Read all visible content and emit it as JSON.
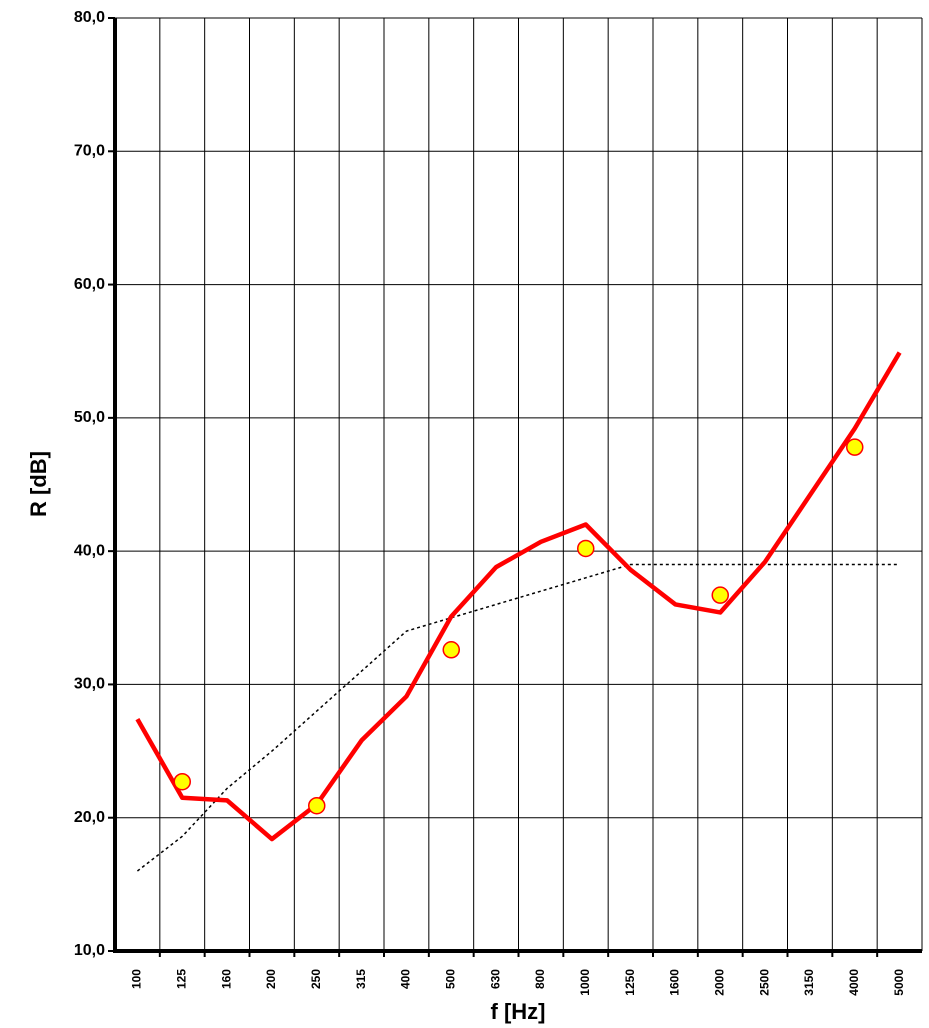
{
  "chart_data": {
    "type": "line",
    "x_label": "f [Hz]",
    "y_label": "R [dB]",
    "categories": [
      "100",
      "125",
      "160",
      "200",
      "250",
      "315",
      "400",
      "500",
      "630",
      "800",
      "1000",
      "1250",
      "1600",
      "2000",
      "2500",
      "3150",
      "4000",
      "5000"
    ],
    "series": [
      {
        "color": "#ff0000",
        "style": "solid",
        "values": [
          27.4,
          21.5,
          21.3,
          18.4,
          21.0,
          25.8,
          29.1,
          35.1,
          38.8,
          40.7,
          42.0,
          38.6,
          36.0,
          35.4,
          39.2,
          44.2,
          49.2,
          54.9
        ]
      },
      {
        "color": "#000000",
        "style": "dotted",
        "values": [
          16.0,
          18.6,
          22.2,
          25.0,
          28.0,
          31.0,
          34.0,
          35.0,
          36.0,
          37.0,
          38.0,
          39.0,
          39.0,
          39.0,
          39.0,
          39.0,
          39.0,
          39.0
        ]
      },
      {
        "color": "#ffff00",
        "style": "markers",
        "values": [
          null,
          22.7,
          null,
          null,
          20.9,
          null,
          null,
          32.6,
          null,
          null,
          40.2,
          null,
          null,
          36.7,
          null,
          null,
          47.8,
          null
        ]
      }
    ],
    "ylim": [
      10,
      80
    ],
    "yticks": [
      {
        "value": 10,
        "label": "10,0"
      },
      {
        "value": 20,
        "label": "20,0"
      },
      {
        "value": 30,
        "label": "30,0"
      },
      {
        "value": 40,
        "label": "40,0"
      },
      {
        "value": 50,
        "label": "50,0"
      },
      {
        "value": 60,
        "label": "60,0"
      },
      {
        "value": 70,
        "label": "70,0"
      },
      {
        "value": 80,
        "label": "80,0"
      }
    ],
    "grid": true
  }
}
